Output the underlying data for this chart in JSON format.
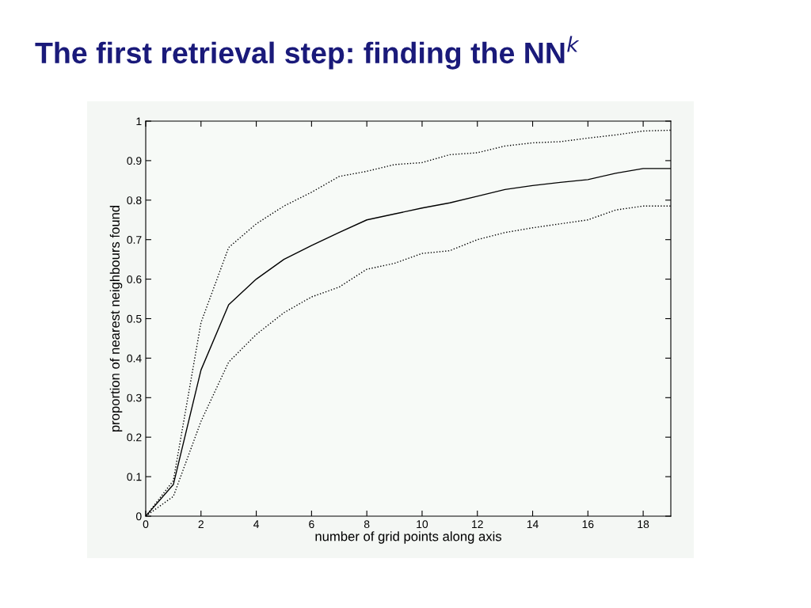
{
  "chart_data": {
    "type": "line",
    "title": "The first retrieval step: finding the NN$^{k}$",
    "xlabel": "number of grid points along axis",
    "ylabel": "proportion of nearest neighbours found",
    "x": [
      0,
      1,
      2,
      3,
      4,
      5,
      6,
      7,
      8,
      9,
      10,
      11,
      12,
      13,
      14,
      15,
      16,
      17,
      18,
      19
    ],
    "series": [
      {
        "color": "#000000",
        "line_style": "solid",
        "values": [
          0,
          0.08,
          0.37,
          0.535,
          0.6,
          0.65,
          0.685,
          0.718,
          0.75,
          0.765,
          0.78,
          0.793,
          0.81,
          0.827,
          0.837,
          0.845,
          0.852,
          0.868,
          0.88,
          0.88
        ]
      },
      {
        "color": "#000000",
        "line_style": "dotted",
        "values": [
          0,
          0.09,
          0.49,
          0.68,
          0.74,
          0.785,
          0.82,
          0.86,
          0.873,
          0.89,
          0.895,
          0.915,
          0.92,
          0.937,
          0.945,
          0.948,
          0.957,
          0.965,
          0.975,
          0.977
        ]
      },
      {
        "color": "#000000",
        "line_style": "dotted",
        "values": [
          0,
          0.05,
          0.24,
          0.39,
          0.46,
          0.515,
          0.555,
          0.58,
          0.625,
          0.64,
          0.665,
          0.672,
          0.7,
          0.718,
          0.73,
          0.74,
          0.75,
          0.775,
          0.785,
          0.785
        ]
      }
    ],
    "xlim": [
      0,
      19
    ],
    "xticks": [
      0,
      2,
      4,
      6,
      8,
      10,
      12,
      14,
      16,
      18
    ],
    "ylim": [
      0,
      1
    ],
    "yticks": [
      0,
      0.1,
      0.2,
      0.3,
      0.4,
      0.5,
      0.6,
      0.7,
      0.8,
      0.9,
      1
    ],
    "grid": false,
    "legend": false,
    "marker": "none"
  }
}
